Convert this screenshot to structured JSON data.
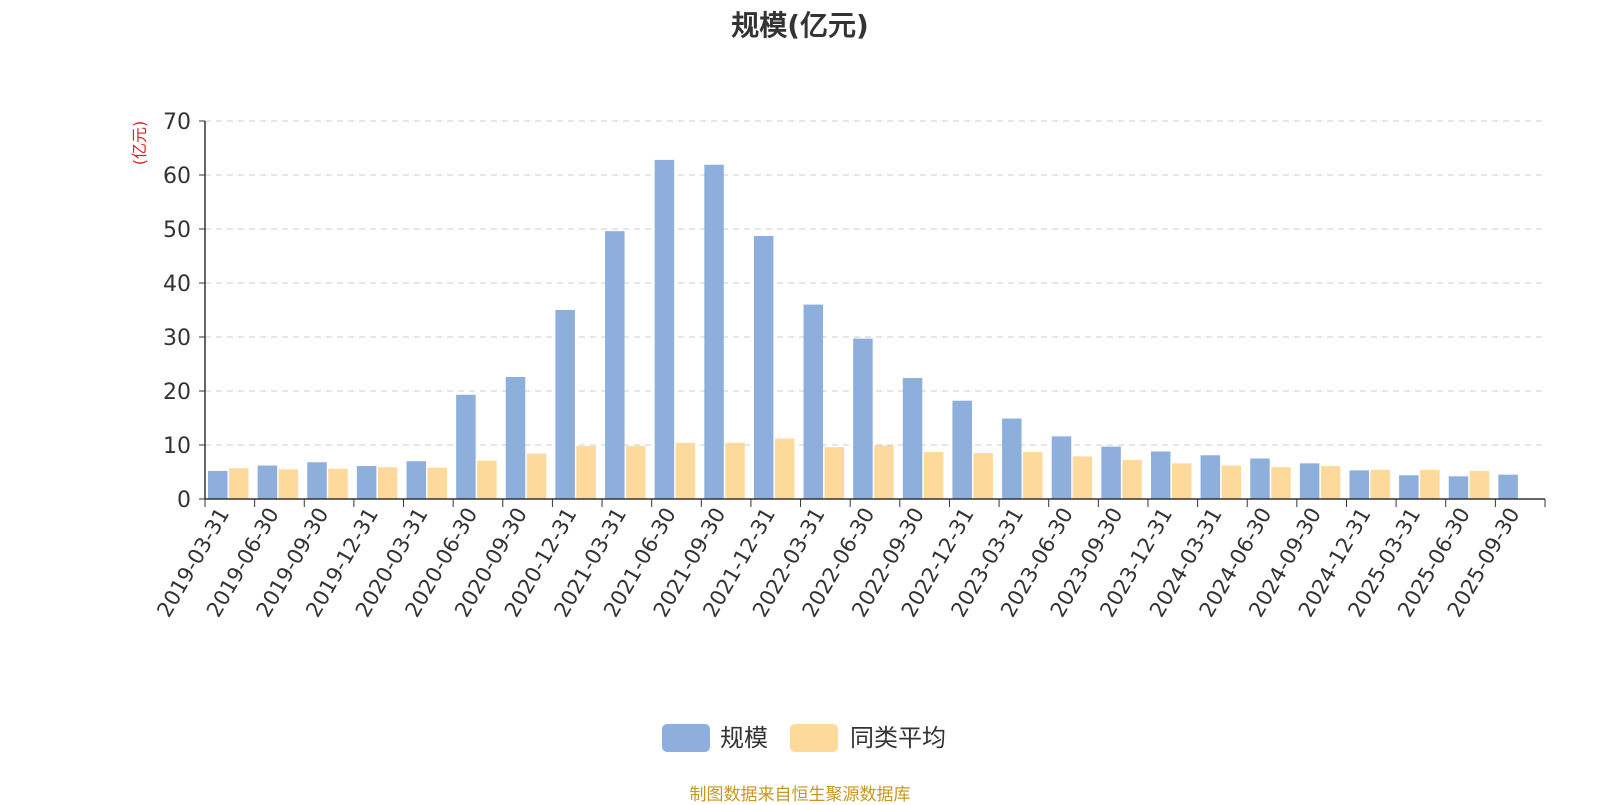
{
  "chart_data": {
    "type": "bar",
    "title": "规模(亿元)",
    "ylabel": "(亿元)",
    "xlabel": "",
    "ylim": [
      0,
      70
    ],
    "yticks": [
      0,
      10,
      20,
      30,
      40,
      50,
      60,
      70
    ],
    "grid": true,
    "legend_position": "bottom-center",
    "categories": [
      "2019-03-31",
      "2019-06-30",
      "2019-09-30",
      "2019-12-31",
      "2020-03-31",
      "2020-06-30",
      "2020-09-30",
      "2020-12-31",
      "2021-03-31",
      "2021-06-30",
      "2021-09-30",
      "2021-12-31",
      "2022-03-31",
      "2022-06-30",
      "2022-09-30",
      "2022-12-31",
      "2023-03-31",
      "2023-06-30",
      "2023-09-30",
      "2023-12-31",
      "2024-03-31",
      "2024-06-30",
      "2024-09-30",
      "2024-12-31",
      "2025-03-31",
      "2025-06-30",
      "2025-09-30"
    ],
    "series": [
      {
        "name": "规模",
        "color": "#8eaedb",
        "values": [
          5.2,
          6.2,
          6.8,
          6.1,
          7.0,
          19.3,
          22.6,
          35.0,
          49.6,
          62.8,
          61.9,
          48.7,
          36.0,
          29.7,
          22.4,
          18.2,
          14.9,
          11.6,
          9.7,
          8.8,
          8.1,
          7.5,
          6.6,
          5.3,
          4.4,
          4.2,
          4.5
        ]
      },
      {
        "name": "同类平均",
        "color": "#fdd99c",
        "values": [
          5.7,
          5.5,
          5.6,
          5.9,
          5.8,
          7.1,
          8.4,
          9.8,
          9.8,
          10.4,
          10.4,
          11.2,
          9.6,
          9.9,
          8.7,
          8.5,
          8.7,
          7.9,
          7.2,
          6.6,
          6.2,
          5.9,
          6.1,
          5.4,
          5.4,
          5.2,
          null
        ]
      }
    ]
  },
  "footer": {
    "source": "制图数据来自恒生聚源数据库"
  }
}
